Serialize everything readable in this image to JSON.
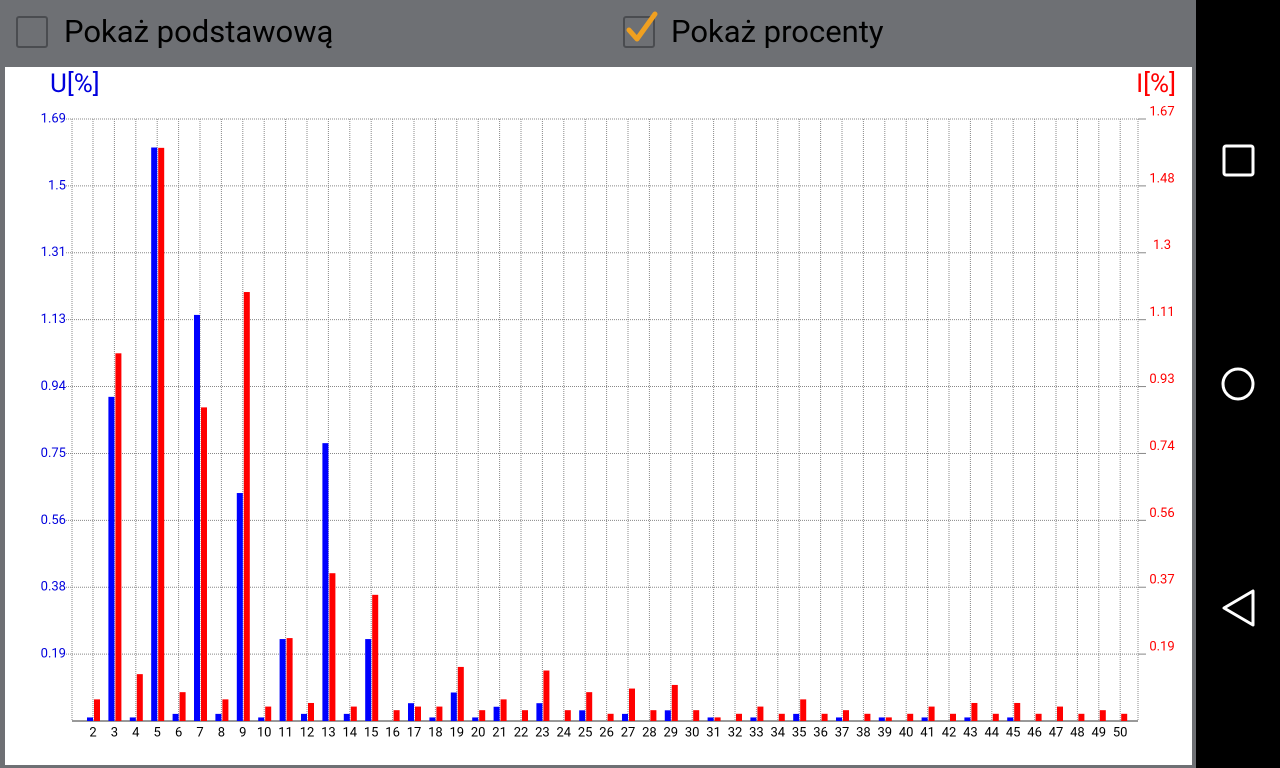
{
  "toolbar": {
    "checkboxes": [
      {
        "label": "Pokaż podstawową",
        "checked": false
      },
      {
        "label": "Pokaż procenty",
        "checked": true
      }
    ]
  },
  "chart_data": {
    "type": "bar",
    "y_label": "U[%]",
    "y2_label": "I[%]",
    "categories": [
      "2",
      "3",
      "4",
      "5",
      "6",
      "7",
      "8",
      "9",
      "10",
      "11",
      "12",
      "13",
      "14",
      "15",
      "16",
      "17",
      "18",
      "19",
      "20",
      "21",
      "22",
      "23",
      "24",
      "25",
      "26",
      "27",
      "28",
      "29",
      "30",
      "31",
      "32",
      "33",
      "34",
      "35",
      "36",
      "37",
      "38",
      "39",
      "40",
      "41",
      "42",
      "43",
      "44",
      "45",
      "46",
      "47",
      "48",
      "49",
      "50"
    ],
    "series": [
      {
        "name": "U",
        "color": "#0000ff",
        "values": [
          0.01,
          0.91,
          0.01,
          1.61,
          0.02,
          1.14,
          0.02,
          0.64,
          0.01,
          0.23,
          0.02,
          0.78,
          0.02,
          0.23,
          0,
          0.05,
          0.01,
          0.08,
          0.01,
          0.04,
          0,
          0.05,
          0,
          0.03,
          0,
          0.02,
          0,
          0.03,
          0,
          0.01,
          0,
          0.01,
          0,
          0.02,
          0,
          0.01,
          0,
          0.01,
          0,
          0.01,
          0,
          0.01,
          0,
          0.01,
          0,
          0,
          0,
          0,
          0
        ]
      },
      {
        "name": "I",
        "color": "#ff0000",
        "axis": "y2",
        "values": [
          0.06,
          1.02,
          0.13,
          1.59,
          0.08,
          0.87,
          0.06,
          1.19,
          0.04,
          0.23,
          0.05,
          0.41,
          0.04,
          0.35,
          0.03,
          0.04,
          0.04,
          0.15,
          0.03,
          0.06,
          0.03,
          0.14,
          0.03,
          0.08,
          0.02,
          0.09,
          0.03,
          0.1,
          0.03,
          0.01,
          0.02,
          0.04,
          0.02,
          0.06,
          0.02,
          0.03,
          0.02,
          0.01,
          0.02,
          0.04,
          0.02,
          0.05,
          0.02,
          0.05,
          0.02,
          0.04,
          0.02,
          0.03,
          0.02
        ]
      }
    ],
    "ylim": [
      0,
      1.69
    ],
    "yticks": [
      {
        "value": 0.18778,
        "label": "0.19"
      },
      {
        "value": 0.37556,
        "label": "0.38"
      },
      {
        "value": 0.56333,
        "label": "0.56"
      },
      {
        "value": 0.75111,
        "label": "0.75"
      },
      {
        "value": 0.93889,
        "label": "0.94"
      },
      {
        "value": 1.12667,
        "label": "1.13"
      },
      {
        "value": 1.31444,
        "label": "1.31"
      },
      {
        "value": 1.50222,
        "label": "1.5"
      },
      1.69
    ],
    "y2lim": [
      0,
      1.67
    ],
    "y2ticks": [
      {
        "value": 0.18556,
        "label": "0.19"
      },
      {
        "value": 0.37111,
        "label": "0.37"
      },
      {
        "value": 0.55667,
        "label": "0.56"
      },
      {
        "value": 0.74222,
        "label": "0.74"
      },
      {
        "value": 0.92778,
        "label": "0.93"
      },
      {
        "value": 1.11333,
        "label": "1.11"
      },
      {
        "value": 1.29889,
        "label": "1.3"
      },
      {
        "value": 1.48444,
        "label": "1.48"
      },
      1.67
    ],
    "grid": true
  }
}
